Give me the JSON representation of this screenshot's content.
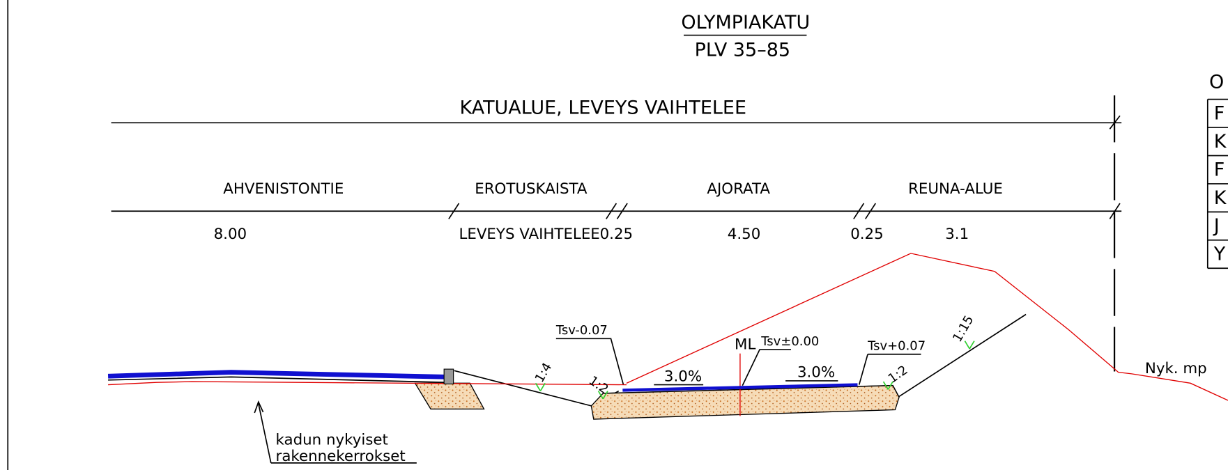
{
  "header": {
    "title": "OLYMPIAKATU",
    "subtitle": "PLV 35–85"
  },
  "dimensions": {
    "overall": "KATUALUE, LEVEYS VAIHTELEE",
    "sections": [
      "AHVENISTONTIE",
      "EROTUSKAISTA",
      "AJORATA",
      "REUNA-ALUE"
    ],
    "widths": [
      "8.00",
      "LEVEYS VAIHTELEE",
      "0.25",
      "4.50",
      "0.25",
      "3.1"
    ]
  },
  "annotations": {
    "left_level": "Tsv-0.07",
    "center_line": "ML",
    "center_level": "Tsv±0.00",
    "right_level": "Tsv+0.07",
    "left_slope": "3.0%",
    "right_slope": "3.0%",
    "slope_ratios": [
      "1:4",
      "1:2",
      "1:2",
      "1:15"
    ],
    "existing_ground": "Nyk. mp",
    "existing_layers": [
      "kadun nykyiset",
      "rakennekerrokset"
    ]
  },
  "legend": {
    "title": "O",
    "rows": [
      "F",
      "K",
      "F",
      "K",
      "J",
      "Y"
    ]
  }
}
